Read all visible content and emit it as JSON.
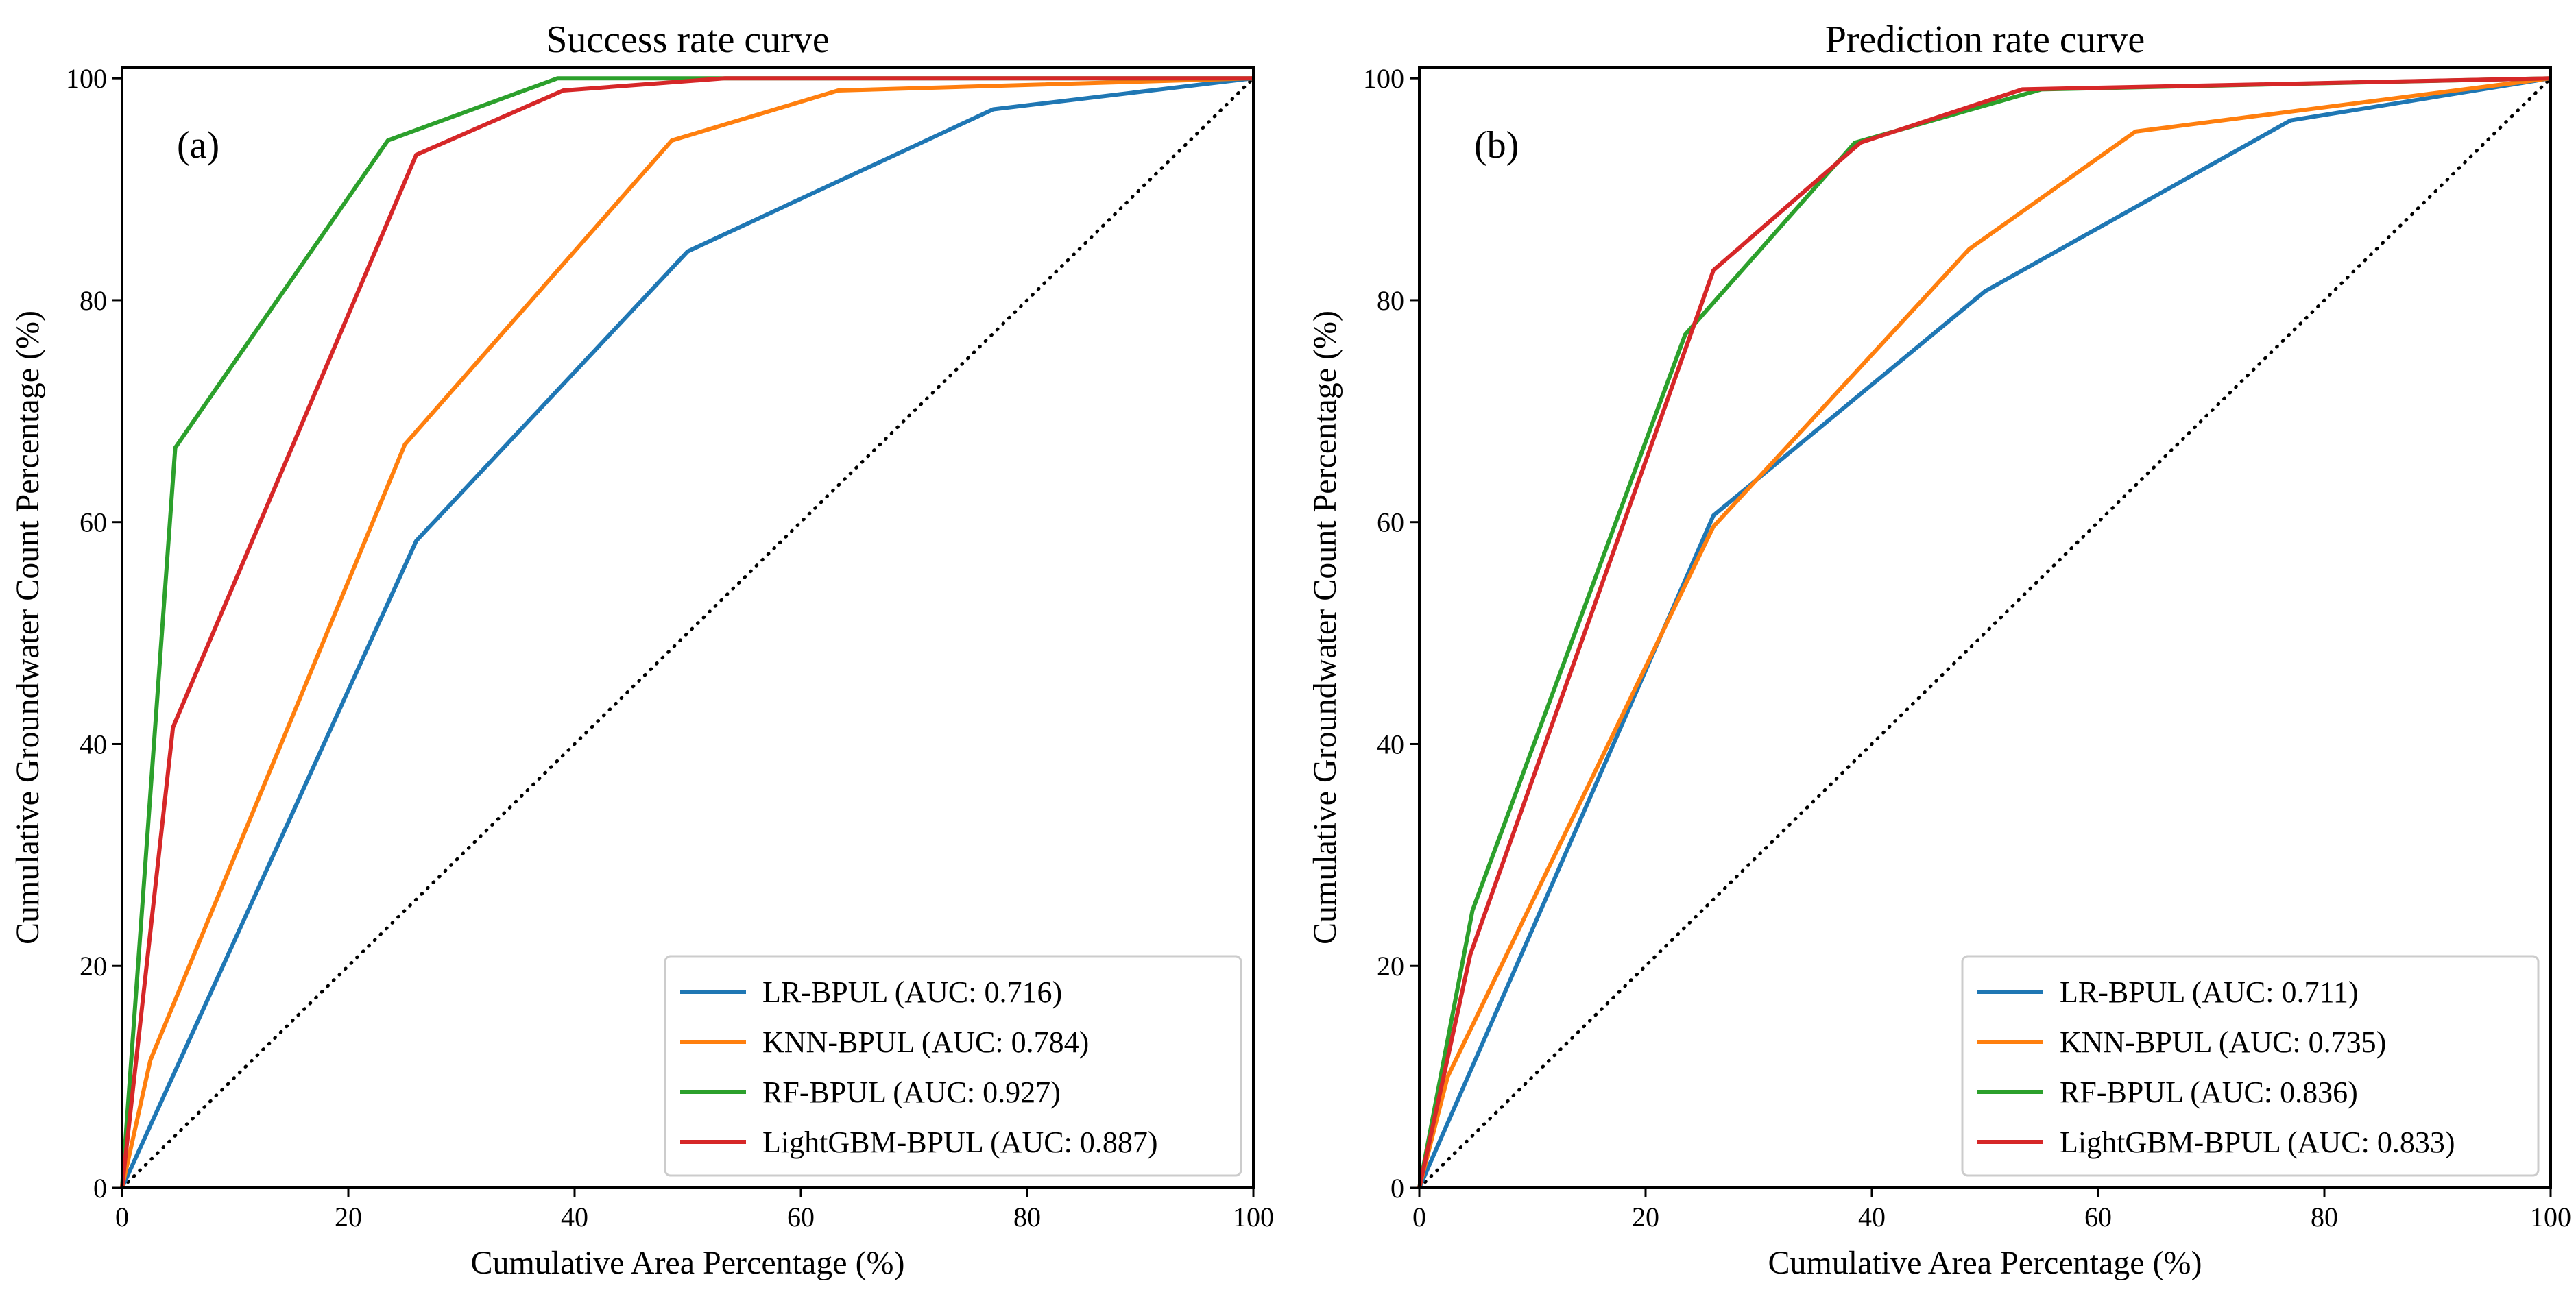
{
  "colors": {
    "lr": "#1f77b4",
    "knn": "#ff7f0e",
    "rf": "#2ca02c",
    "lgbm": "#d62728",
    "frame": "#000000",
    "legend_border": "#cccccc"
  },
  "chart_data": [
    {
      "type": "line",
      "panel_label": "(a)",
      "title": "Success rate curve",
      "xlabel": "Cumulative Area Percentage (%)",
      "ylabel": "Cumulative Groundwater Count Percentage (%)",
      "xlim": [
        0,
        100
      ],
      "ylim": [
        0,
        101
      ],
      "xticks": [
        0,
        20,
        40,
        60,
        80,
        100
      ],
      "yticks": [
        0,
        20,
        40,
        60,
        80,
        100
      ],
      "legend_position": "lower-right",
      "reference_line": {
        "style": "dotted",
        "x": [
          0,
          100
        ],
        "y": [
          0,
          100
        ]
      },
      "series": [
        {
          "name": "LR-BPUL (AUC: 0.716)",
          "color_key": "lr",
          "x": [
            0,
            26,
            50,
            77,
            100
          ],
          "y": [
            0,
            58.3,
            84.4,
            97.2,
            100
          ]
        },
        {
          "name": "KNN-BPUL (AUC: 0.784)",
          "color_key": "knn",
          "x": [
            0,
            2.5,
            25,
            48.6,
            63.3,
            100
          ],
          "y": [
            0,
            11.5,
            67,
            94.4,
            98.9,
            100
          ]
        },
        {
          "name": "RF-BPUL (AUC: 0.927)",
          "color_key": "rf",
          "x": [
            0,
            4.7,
            23.5,
            38.5,
            53,
            100
          ],
          "y": [
            0,
            66.7,
            94.4,
            100,
            100,
            100
          ]
        },
        {
          "name": "LightGBM-BPUL (AUC: 0.887)",
          "color_key": "lgbm",
          "x": [
            0,
            4.5,
            26,
            39,
            53.3,
            100
          ],
          "y": [
            0,
            41.5,
            93.1,
            98.9,
            100,
            100
          ]
        }
      ]
    },
    {
      "type": "line",
      "panel_label": "(b)",
      "title": "Prediction rate curve",
      "xlabel": "Cumulative Area Percentage (%)",
      "ylabel": "Cumulative Groundwater Count Percentage (%)",
      "xlim": [
        0,
        100
      ],
      "ylim": [
        0,
        101
      ],
      "xticks": [
        0,
        20,
        40,
        60,
        80,
        100
      ],
      "yticks": [
        0,
        20,
        40,
        60,
        80,
        100
      ],
      "legend_position": "lower-right",
      "reference_line": {
        "style": "dotted",
        "x": [
          0,
          100
        ],
        "y": [
          0,
          100
        ]
      },
      "series": [
        {
          "name": "LR-BPUL (AUC: 0.711)",
          "color_key": "lr",
          "x": [
            0,
            26,
            50,
            77,
            100
          ],
          "y": [
            0,
            60.6,
            80.8,
            96.2,
            100
          ]
        },
        {
          "name": "KNN-BPUL (AUC: 0.735)",
          "color_key": "knn",
          "x": [
            0,
            2.5,
            26,
            48.6,
            63.3,
            100
          ],
          "y": [
            0,
            10,
            59.6,
            84.6,
            95.2,
            100
          ]
        },
        {
          "name": "RF-BPUL (AUC: 0.836)",
          "color_key": "rf",
          "x": [
            0,
            4.7,
            23.5,
            38.5,
            55,
            100
          ],
          "y": [
            0,
            25,
            76.9,
            94.2,
            99,
            100
          ]
        },
        {
          "name": "LightGBM-BPUL (AUC: 0.833)",
          "color_key": "lgbm",
          "x": [
            0,
            4.5,
            26,
            39,
            53.3,
            100
          ],
          "y": [
            0,
            21,
            82.7,
            94.2,
            99,
            100
          ]
        }
      ]
    }
  ]
}
